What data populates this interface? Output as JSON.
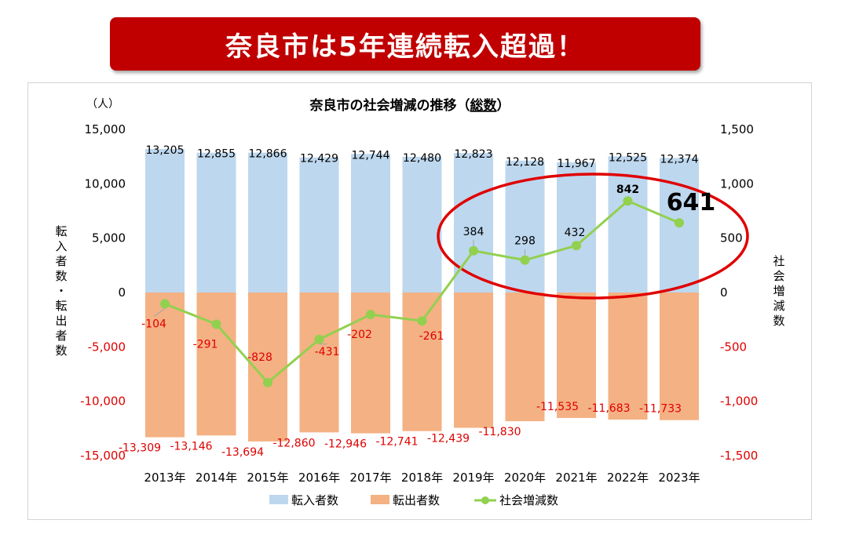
{
  "banner": {
    "text": "奈良市は5年連続転入超過！"
  },
  "chart_data": {
    "type": "bar",
    "title_prefix": "奈良市の社会増減の推移（",
    "title_emph": "総数",
    "title_suffix": "）",
    "unit_label": "（人）",
    "categories": [
      "2013年",
      "2014年",
      "2015年",
      "2016年",
      "2017年",
      "2018年",
      "2019年",
      "2020年",
      "2021年",
      "2022年",
      "2023年"
    ],
    "series": [
      {
        "name": "転入者数",
        "axis": "left",
        "kind": "bar",
        "color": "#bdd7ee",
        "values": [
          13205,
          12855,
          12866,
          12429,
          12744,
          12480,
          12823,
          12128,
          11967,
          12525,
          12374
        ],
        "labels": [
          "13,205",
          "12,855",
          "12,866",
          "12,429",
          "12,744",
          "12,480",
          "12,823",
          "12,128",
          "11,967",
          "12,525",
          "12,374"
        ]
      },
      {
        "name": "転出者数",
        "axis": "left",
        "kind": "bar",
        "color": "#f4b183",
        "values": [
          -13309,
          -13146,
          -13694,
          -12860,
          -12946,
          -12741,
          -12439,
          -11830,
          -11535,
          -11683,
          -11733
        ],
        "labels": [
          "-13,309",
          "-13,146",
          "-13,694",
          "-12,860",
          "-12,946",
          "-12,741",
          "-12,439",
          "-11,830",
          "-11,535",
          "-11,683",
          "-11,733"
        ]
      },
      {
        "name": "社会増減数",
        "axis": "right",
        "kind": "line",
        "color": "#92d050",
        "values": [
          -104,
          -291,
          -828,
          -431,
          -202,
          -261,
          384,
          298,
          432,
          842,
          641
        ],
        "labels": [
          "-104",
          "-291",
          "-828",
          "-431",
          "-202",
          "-261",
          "384",
          "298",
          "432",
          "842",
          "641"
        ]
      }
    ],
    "ylabel_left": "転入者数・転出者数",
    "ylabel_right": "社会増減数",
    "yleft": {
      "min": -15000,
      "max": 15000,
      "ticks": [
        15000,
        10000,
        5000,
        0,
        -5000,
        -10000,
        -15000
      ],
      "tick_labels": [
        "15,000",
        "10,000",
        "5,000",
        "0",
        "-5,000",
        "-10,000",
        "-15,000"
      ]
    },
    "yright": {
      "min": -1500,
      "max": 1500,
      "ticks": [
        1500,
        1000,
        500,
        0,
        -500,
        -1000,
        -1500
      ],
      "tick_labels": [
        "1,500",
        "1,000",
        "500",
        "0",
        "-500",
        "-1,000",
        "-1,500"
      ]
    },
    "highlight_color": "#e00000",
    "legend_position": "bottom",
    "grid": false
  }
}
